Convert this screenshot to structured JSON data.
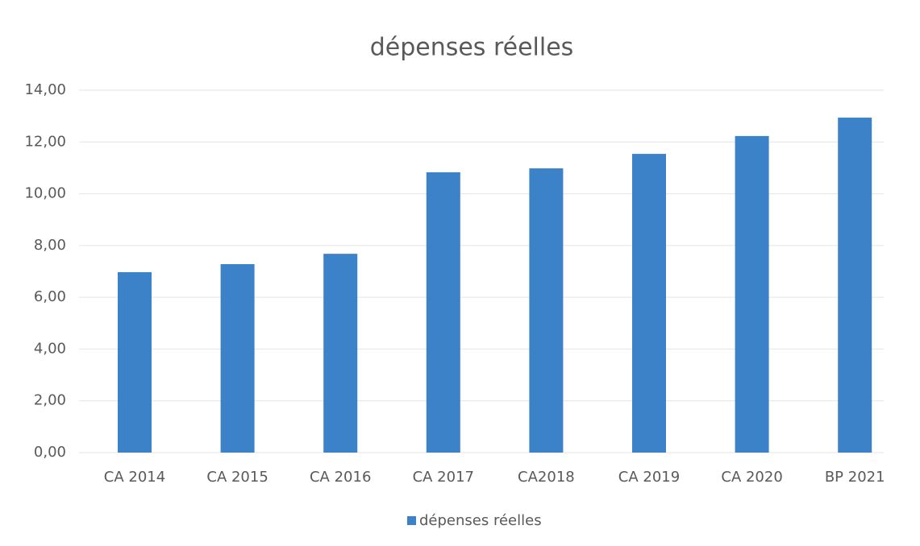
{
  "chart_data": {
    "type": "bar",
    "title": "dépenses réelles",
    "categories": [
      "CA 2014",
      "CA 2015",
      "CA 2016",
      "CA 2017",
      "CA2018",
      "CA 2019",
      "CA 2020",
      "BP 2021"
    ],
    "series": [
      {
        "name": "dépenses réelles",
        "color": "#3b82c8",
        "values": [
          6.97,
          7.28,
          7.68,
          10.83,
          10.98,
          11.54,
          12.23,
          12.94
        ]
      }
    ],
    "ylim": [
      0,
      14
    ],
    "yticks": [
      {
        "value": 0,
        "label": "0,00"
      },
      {
        "value": 2,
        "label": "2,00"
      },
      {
        "value": 4,
        "label": "4,00"
      },
      {
        "value": 6,
        "label": "6,00"
      },
      {
        "value": 8,
        "label": "8,00"
      },
      {
        "value": 10,
        "label": "10,00"
      },
      {
        "value": 12,
        "label": "12,00"
      },
      {
        "value": 14,
        "label": "14,00"
      }
    ],
    "grid": true,
    "legend": "bottom"
  }
}
